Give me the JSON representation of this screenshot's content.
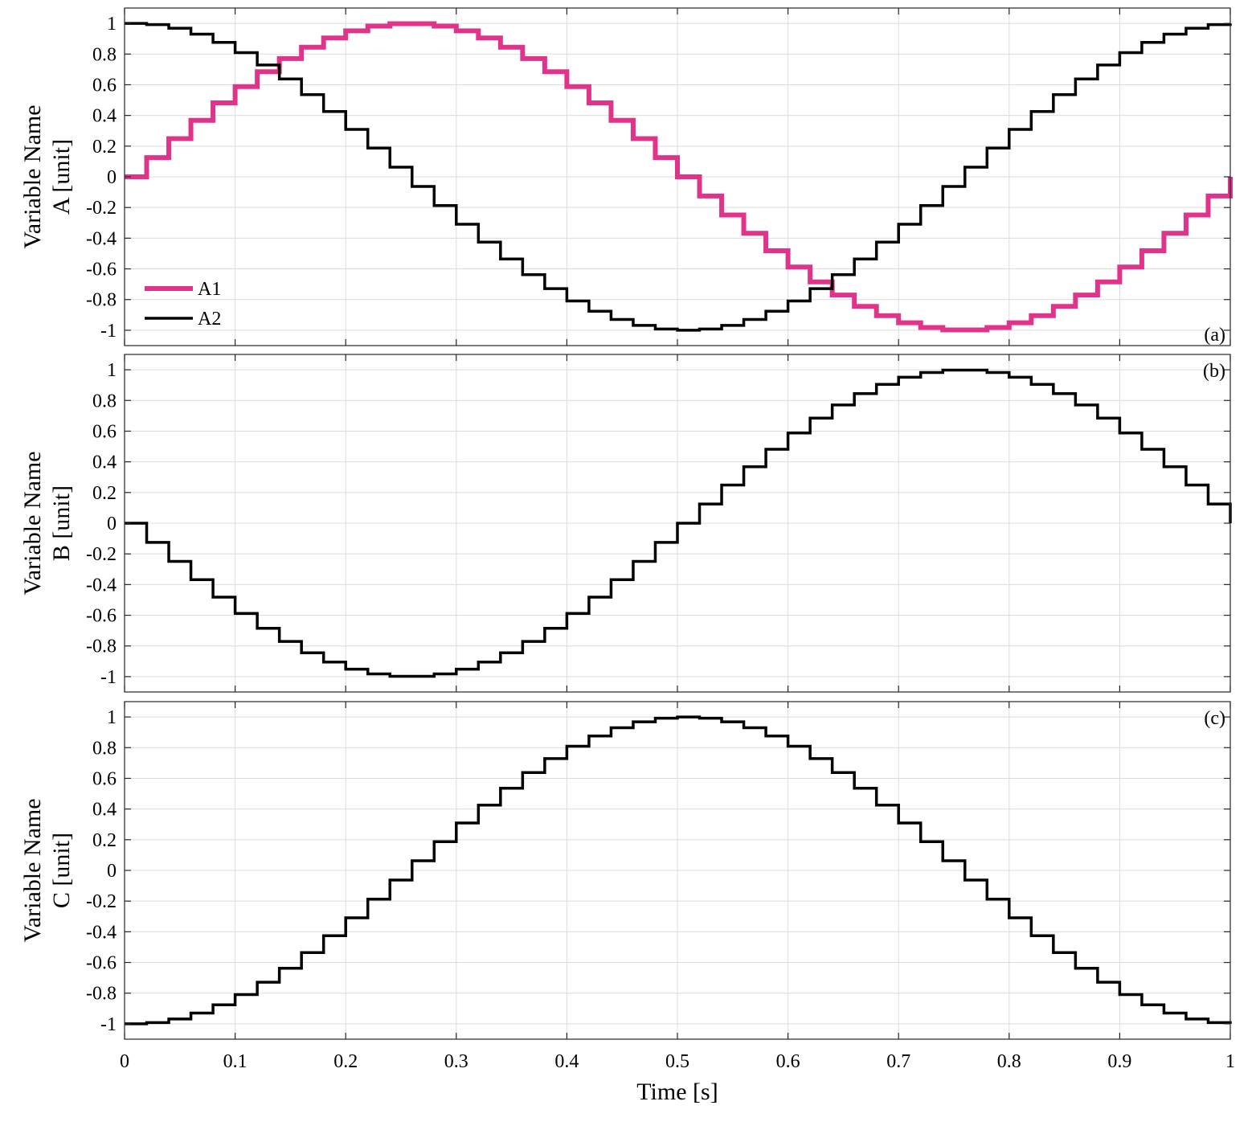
{
  "figure": {
    "xlabel": "Time [s]",
    "xticks": [
      "0",
      "0.1",
      "0.2",
      "0.3",
      "0.4",
      "0.5",
      "0.6",
      "0.7",
      "0.8",
      "0.9",
      "1"
    ],
    "yticks": [
      "1",
      "0.8",
      "0.6",
      "0.4",
      "0.2",
      "0",
      "-0.2",
      "-0.4",
      "-0.6",
      "-0.8",
      "-1"
    ]
  },
  "chart_data": [
    {
      "type": "line",
      "step": true,
      "panel_tag": "(a)",
      "ylabel_line1": "Variable Name",
      "ylabel_line2": "A [unit]",
      "xlim": [
        0,
        1
      ],
      "ylim": [
        -1.1,
        1.1
      ],
      "grid": true,
      "legend": {
        "placement": "bottom-left",
        "entries": [
          "A1",
          "A2"
        ]
      },
      "step_interval": 0.02,
      "series": [
        {
          "name": "A1",
          "color": "#e0348b",
          "linewidth": 6,
          "function": "sin",
          "phase": 0,
          "values_note": "step samples of sin(2*pi*t) at t = 0, 0.02, ..., 0.98"
        },
        {
          "name": "A2",
          "color": "#000000",
          "linewidth": 3.5,
          "function": "cos",
          "phase": 0
        }
      ]
    },
    {
      "type": "line",
      "step": true,
      "panel_tag": "(b)",
      "ylabel_line1": "Variable Name",
      "ylabel_line2": "B [unit]",
      "xlim": [
        0,
        1
      ],
      "ylim": [
        -1.1,
        1.1
      ],
      "grid": true,
      "step_interval": 0.02,
      "series": [
        {
          "color": "#000000",
          "linewidth": 3.5,
          "function": "negsin",
          "phase": 0
        }
      ]
    },
    {
      "type": "line",
      "step": true,
      "panel_tag": "(c)",
      "ylabel_line1": "Variable Name",
      "ylabel_line2": "C [unit]",
      "xlim": [
        0,
        1
      ],
      "ylim": [
        -1.1,
        1.1
      ],
      "grid": true,
      "step_interval": 0.02,
      "series": [
        {
          "color": "#000000",
          "linewidth": 3.5,
          "function": "negcos",
          "phase": 0
        }
      ]
    }
  ]
}
